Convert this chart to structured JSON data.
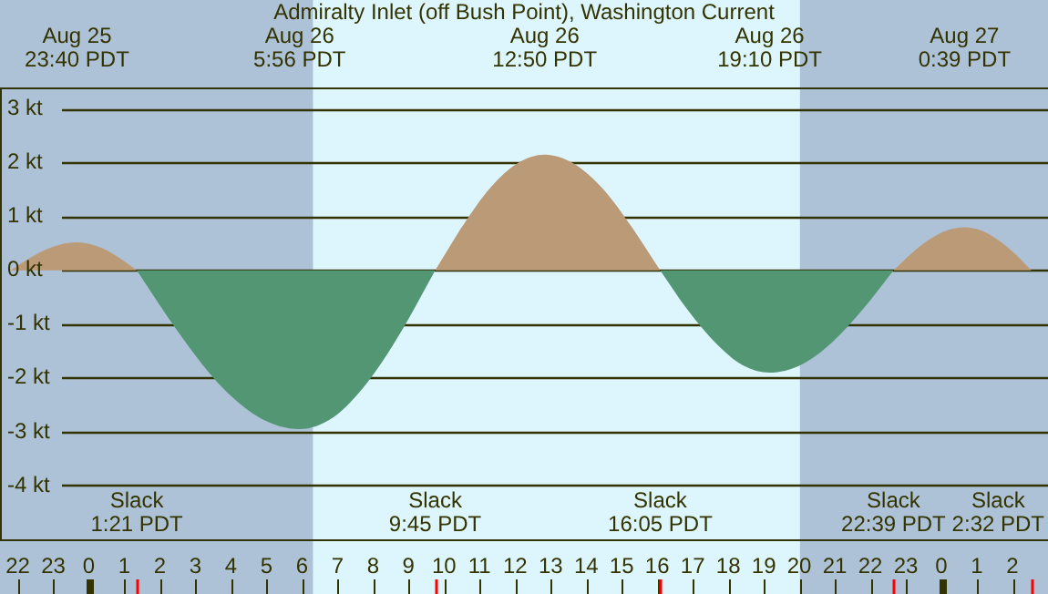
{
  "chart_data": {
    "type": "area",
    "title": "Admiralty Inlet (off Bush Point), Washington Current",
    "x": [
      "--08-25T21:48",
      "--08-25T22:16",
      "--08-25T22:44",
      "--08-25T23:12",
      "--08-25T23:40",
      "--08-26T00:05",
      "--08-26T00:31",
      "--08-26T00:56",
      "--08-26T01:21",
      "--08-26T02:30",
      "--08-26T03:38",
      "--08-26T04:47",
      "--08-26T05:56",
      "--08-26T06:53",
      "--08-26T07:50",
      "--08-26T08:48",
      "--08-26T09:45",
      "--08-26T10:31",
      "--08-26T11:17",
      "--08-26T12:04",
      "--08-26T12:50",
      "--08-26T13:38",
      "--08-26T14:28",
      "--08-26T15:16",
      "--08-26T16:05",
      "--08-26T16:51",
      "--08-26T17:38",
      "--08-26T18:24",
      "--08-26T19:10",
      "--08-26T20:02",
      "--08-26T20:55",
      "--08-26T21:47",
      "--08-26T22:39",
      "--08-26T23:09",
      "--08-26T23:39",
      "--08-27T00:09",
      "--08-27T00:39",
      "--08-27T01:07",
      "--08-27T01:35",
      "--08-27T02:04",
      "--08-27T02:32"
    ],
    "series": [
      {
        "color": "#bb9a78",
        "values": [
          0,
          0.2,
          0.37,
          0.48,
          0.52,
          0.48,
          0.37,
          0.2,
          0,
          null,
          null,
          null,
          null,
          null,
          null,
          null,
          0,
          0.82,
          1.52,
          1.99,
          2.15,
          1.99,
          1.52,
          0.82,
          0,
          null,
          null,
          null,
          null,
          null,
          null,
          null,
          0,
          0.31,
          0.57,
          0.74,
          0.8,
          0.74,
          0.57,
          0.31,
          0
        ]
      },
      {
        "color": "#529673",
        "values": [
          null,
          null,
          null,
          null,
          null,
          null,
          null,
          null,
          0,
          -1.13,
          -2.09,
          -2.73,
          -2.95,
          -2.73,
          -2.09,
          -1.13,
          0,
          null,
          null,
          null,
          null,
          null,
          null,
          null,
          0,
          -0.73,
          -1.34,
          -1.76,
          -1.9,
          -1.76,
          -1.34,
          -0.73,
          0,
          null,
          null,
          null,
          null,
          null,
          null,
          null,
          null
        ]
      }
    ],
    "xlim": [
      "--08-25T21:30",
      "--08-27T03:00"
    ],
    "xticks": [
      {
        "value": "--08-25T22:00",
        "label": "22"
      },
      {
        "value": "--08-25T23:00",
        "label": "23"
      },
      {
        "value": "--08-26T00:00",
        "label": "0"
      },
      {
        "value": "--08-26T01:00",
        "label": "1"
      },
      {
        "value": "--08-26T02:00",
        "label": "2"
      },
      {
        "value": "--08-26T03:00",
        "label": "3"
      },
      {
        "value": "--08-26T04:00",
        "label": "4"
      },
      {
        "value": "--08-26T05:00",
        "label": "5"
      },
      {
        "value": "--08-26T06:00",
        "label": "6"
      },
      {
        "value": "--08-26T07:00",
        "label": "7"
      },
      {
        "value": "--08-26T08:00",
        "label": "8"
      },
      {
        "value": "--08-26T09:00",
        "label": "9"
      },
      {
        "value": "--08-26T10:00",
        "label": "10"
      },
      {
        "value": "--08-26T11:00",
        "label": "11"
      },
      {
        "value": "--08-26T12:00",
        "label": "12"
      },
      {
        "value": "--08-26T13:00",
        "label": "13"
      },
      {
        "value": "--08-26T14:00",
        "label": "14"
      },
      {
        "value": "--08-26T15:00",
        "label": "15"
      },
      {
        "value": "--08-26T16:00",
        "label": "16"
      },
      {
        "value": "--08-26T17:00",
        "label": "17"
      },
      {
        "value": "--08-26T18:00",
        "label": "18"
      },
      {
        "value": "--08-26T19:00",
        "label": "19"
      },
      {
        "value": "--08-26T20:00",
        "label": "20"
      },
      {
        "value": "--08-26T21:00",
        "label": "21"
      },
      {
        "value": "--08-26T22:00",
        "label": "22"
      },
      {
        "value": "--08-26T23:00",
        "label": "23"
      },
      {
        "value": "--08-27T00:00",
        "label": "0"
      },
      {
        "value": "--08-27T01:00",
        "label": "1"
      },
      {
        "value": "--08-27T02:00",
        "label": "2"
      }
    ],
    "x2lim": [
      "--08-25T21:30",
      "--08-27T03:00"
    ],
    "x2ticks": [
      {
        "value": "--08-25T23:40",
        "label": "Aug 25\n23:40 PDT"
      },
      {
        "value": "--08-26T05:56",
        "label": "Aug 26\n5:56 PDT"
      },
      {
        "value": "--08-26T12:50",
        "label": "Aug 26\n12:50 PDT"
      },
      {
        "value": "--08-26T19:10",
        "label": "Aug 26\n19:10 PDT"
      },
      {
        "value": "--08-27T00:39",
        "label": "Aug 27\n0:39 PDT"
      }
    ],
    "ylim": [
      -5,
      3.4
    ],
    "yticks": [
      {
        "value": -4,
        "label": "-4 kt"
      },
      {
        "value": -3,
        "label": "-3 kt"
      },
      {
        "value": -2,
        "label": "-2 kt"
      },
      {
        "value": -1,
        "label": "-1 kt"
      },
      {
        "value": 0,
        "label": "0 kt"
      },
      {
        "value": 1,
        "label": "1 kt"
      },
      {
        "value": 2,
        "label": "2 kt"
      },
      {
        "value": 3,
        "label": "3 kt"
      }
    ],
    "grid": "y",
    "legend": false,
    "bands": [
      {
        "axis": "x",
        "from": "--08-25T21:30",
        "to": "--08-26T06:19",
        "color": "#aec2d7"
      },
      {
        "axis": "x",
        "from": "--08-26T06:19",
        "to": "--08-26T20:01",
        "color": "#ddf6fe"
      },
      {
        "axis": "x",
        "from": "--08-26T20:01",
        "to": "--08-27T03:00",
        "color": "#aec2d7"
      }
    ],
    "annotations": [
      "Slack\n1:21 PDT",
      "Slack\n9:45 PDT",
      "Slack\n16:05 PDT",
      "Slack\n22:39 PDT",
      "Slack\n2:32 PDT"
    ]
  }
}
